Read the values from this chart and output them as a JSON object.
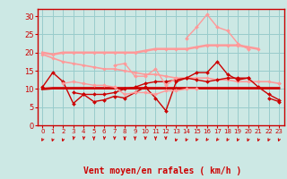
{
  "x": [
    0,
    1,
    2,
    3,
    4,
    5,
    6,
    7,
    8,
    9,
    10,
    11,
    12,
    13,
    14,
    15,
    16,
    17,
    18,
    19,
    20,
    21,
    22,
    23
  ],
  "background_color": "#cce8e4",
  "grid_color": "#99cccc",
  "xlabel": "Vent moyen/en rafales ( km/h )",
  "xlabel_color": "#cc0000",
  "ylim": [
    0,
    32
  ],
  "yticks": [
    0,
    5,
    10,
    15,
    20,
    25,
    30
  ],
  "lines": [
    {
      "y": [
        19.5,
        18.5,
        17.5,
        17.0,
        16.5,
        16.0,
        15.5,
        15.5,
        15.0,
        14.5,
        14.0,
        14.0,
        13.5,
        13.0,
        13.0,
        13.0,
        13.0,
        12.5,
        12.5,
        12.0,
        12.0,
        12.0,
        12.0,
        11.5
      ],
      "color": "#ff9999",
      "lw": 1.2,
      "marker": "D",
      "ms": 1.8
    },
    {
      "y": [
        10.0,
        10.2,
        10.2,
        10.2,
        10.2,
        10.2,
        10.2,
        10.2,
        10.2,
        10.2,
        10.2,
        10.2,
        10.2,
        10.2,
        10.2,
        10.2,
        10.2,
        10.2,
        10.2,
        10.2,
        10.2,
        10.2,
        10.2,
        10.2
      ],
      "color": "#cc0000",
      "lw": 2.0,
      "marker": null,
      "ms": 0
    },
    {
      "y": [
        20.0,
        19.5,
        20.0,
        20.0,
        20.0,
        20.0,
        20.0,
        20.0,
        20.0,
        20.0,
        20.5,
        21.0,
        21.0,
        21.0,
        21.0,
        21.5,
        22.0,
        22.0,
        22.0,
        22.0,
        21.5,
        21.0,
        null,
        null
      ],
      "color": "#ff9999",
      "lw": 1.8,
      "marker": "D",
      "ms": 1.8
    },
    {
      "y": [
        10.5,
        14.5,
        12.0,
        6.0,
        8.5,
        6.5,
        7.0,
        8.0,
        7.5,
        9.0,
        10.5,
        7.5,
        4.0,
        12.0,
        13.0,
        14.5,
        14.5,
        17.5,
        14.0,
        12.5,
        13.0,
        10.5,
        8.5,
        7.0
      ],
      "color": "#cc0000",
      "lw": 1.0,
      "marker": "D",
      "ms": 2.0
    },
    {
      "y": [
        null,
        null,
        null,
        9.0,
        8.5,
        8.5,
        8.5,
        9.0,
        10.0,
        10.5,
        11.5,
        12.0,
        12.0,
        12.5,
        13.0,
        12.5,
        12.0,
        12.5,
        13.0,
        13.0,
        13.0,
        null,
        null,
        null
      ],
      "color": "#cc0000",
      "lw": 1.0,
      "marker": "D",
      "ms": 2.0
    },
    {
      "y": [
        null,
        null,
        11.5,
        12.0,
        11.5,
        11.0,
        11.0,
        10.5,
        8.5,
        9.0,
        9.0,
        8.5,
        9.5,
        9.5,
        10.0,
        10.0,
        null,
        null,
        null,
        null,
        null,
        null,
        null,
        null
      ],
      "color": "#ff9999",
      "lw": 1.0,
      "marker": "D",
      "ms": 2.0
    },
    {
      "y": [
        null,
        null,
        null,
        null,
        null,
        null,
        null,
        16.5,
        17.0,
        13.5,
        13.5,
        15.5,
        11.0,
        13.0,
        null,
        null,
        null,
        null,
        null,
        null,
        null,
        null,
        null,
        null
      ],
      "color": "#ff9999",
      "lw": 1.0,
      "marker": "D",
      "ms": 2.0
    },
    {
      "y": [
        null,
        null,
        null,
        null,
        null,
        null,
        null,
        null,
        null,
        null,
        null,
        null,
        null,
        null,
        24.0,
        27.0,
        30.5,
        27.0,
        26.0,
        22.5,
        21.0,
        null,
        null,
        11.5
      ],
      "color": "#ff9999",
      "lw": 1.0,
      "marker": "D",
      "ms": 2.0
    },
    {
      "y": [
        null,
        null,
        null,
        null,
        null,
        null,
        null,
        null,
        null,
        null,
        null,
        null,
        null,
        null,
        null,
        null,
        null,
        null,
        null,
        null,
        null,
        null,
        7.5,
        6.5
      ],
      "color": "#cc0000",
      "lw": 1.0,
      "marker": "D",
      "ms": 2.0
    }
  ],
  "tick_label_color": "#cc0000",
  "axis_color": "#cc0000",
  "arrow_angles": [
    225,
    210,
    210,
    200,
    190,
    180,
    190,
    185,
    180,
    180,
    185,
    180,
    175,
    210,
    220,
    225,
    230,
    235,
    225,
    220,
    215,
    215,
    220,
    215
  ]
}
